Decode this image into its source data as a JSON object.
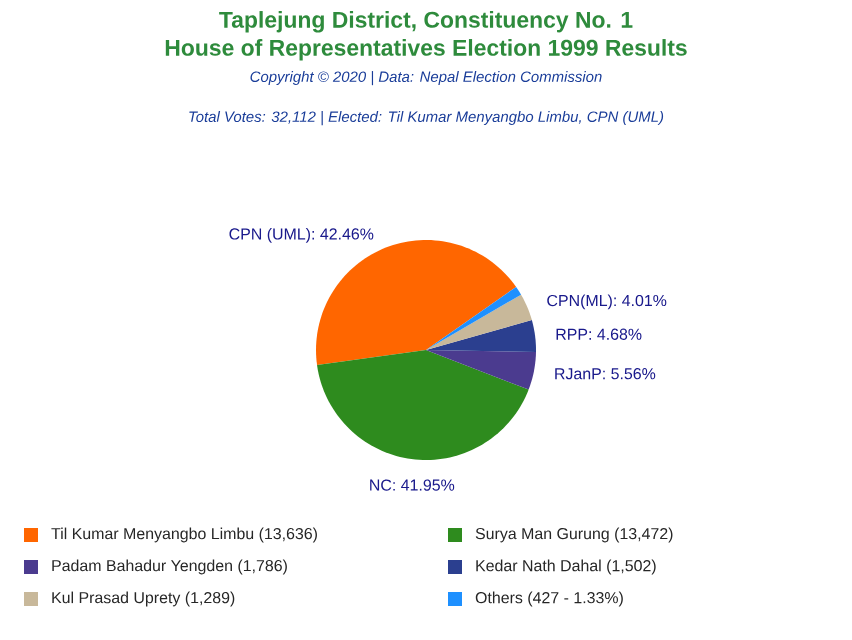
{
  "chart_data": {
    "type": "pie",
    "title": "Taplejung District, Constituency No. 1",
    "subtitle": "House of Representatives Election 1999 Results",
    "annotations": [
      "Copyright © 2020 | Data: Nepal Election Commission",
      "Total Votes: 32,112 | Elected: Til Kumar Menyangbo Limbu, CPN (UML)"
    ],
    "categories": [
      "Til Kumar Menyangbo Limbu (13,636)",
      "Surya Man Gurung (13,472)",
      "Padam Bahadur Yengden (1,786)",
      "Kedar Nath Dahal (1,502)",
      "Kul Prasad Uprety (1,289)",
      "Others (427 - 1.33%)"
    ],
    "values": [
      42.46,
      41.95,
      5.56,
      4.68,
      4.01,
      1.33
    ],
    "colors": [
      "#ff6600",
      "#2e8b1e",
      "#4b3b8f",
      "#2b3f8f",
      "#c8b89a",
      "#1e90ff"
    ],
    "value_labels": [
      "CPN (UML): 42.46%",
      "NC: 41.95%",
      "RJanP: 5.56%",
      "RPP: 4.68%",
      "CPN(ML): 4.01%",
      null
    ],
    "legend": "bottom"
  }
}
